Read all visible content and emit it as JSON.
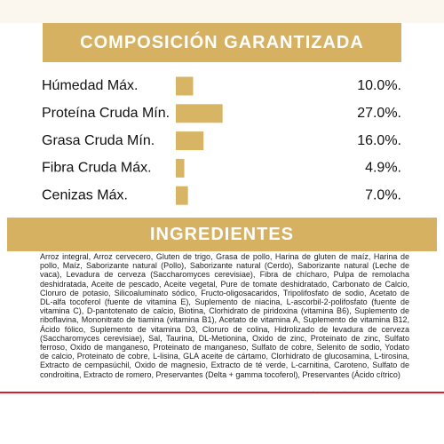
{
  "chart_data": {
    "type": "bar",
    "title": "COMPOSICIÓN GARANTIZADA",
    "categories": [
      "Húmedad Máx.",
      "Proteína Cruda Mín.",
      "Grasa Cruda Mín.",
      "Fibra Cruda Máx.",
      "Cenizas Máx."
    ],
    "values": [
      10.0,
      27.0,
      16.0,
      4.9,
      7.0
    ],
    "value_labels": [
      "10.0%.",
      "27.0%.",
      "16.0%.",
      "4.9%.",
      "7.0%."
    ],
    "color": "#d8b465"
  },
  "ingredients": {
    "title": "INGREDIENTES",
    "lines": [
      "Arroz integral, Arroz cervecero, Gluten de trigo, Grasa de pollo, Harina de gluten de maíz, Harina de",
      "pollo, Maíz, Saborizante natural (Pollo), Saborizante natural (Cerdo), Saborizante natural (Leche de",
      "vaca), Levadura de cerveza (Saccharomyces cerevisiae), Fibra de chícharo, Pulpa de remolacha",
      "deshidratada, Aceite de pescado, Aceite vegetal, Pure de tomate deshidratado, Carbonato de Calcio,",
      "Cloruro de potasio, Silicoaluminato sódico, Fructo-oligosacaridos, Tripolifosfato de sodio, Acetato de",
      "DL-alfa tocoferol (fuente de vitamina E), Suplemento de niacina, L-ascorbil-2-polifosfato (fuente de",
      "vitamina C), D-pantotenato de calcio, Biotina, Clorhidrato de piridoxina (vitamina B6), Suplemento de",
      "riboflavina, Mononitrato de tiamina (vitamina B1), Acetato de vitamina A, Suplemento de vitamina B12,",
      "Ácido fólico, Suplemento de vitamina D3, Cloruro de colina, Hidrolizado de levadura de cerveza",
      "(Saccharomyces cerevisiae), Sal, Taurina, DL-Metionina, Oxido de zinc, Proteinato de zinc, Sulfato",
      "ferroso, Oxido de manganeso, Proteinato de manganeso, Sulfato de cobre, Selenito de sodio, Yodato",
      "de calcio, Proteinato de cobre, L-lisina, GLA aceite de cártamo, Clorhidrato de glucosamina, L-tirosina,",
      "Extracto de cempasúchil, Oxido de magnesio, Extracto de té verde, L-carnitina, Caroteno, Sulfato de",
      "condroitina, Extracto de romero, Preservantes (Delta + gamma tocoferol), Preservantes (Ácido cítrico)"
    ]
  }
}
